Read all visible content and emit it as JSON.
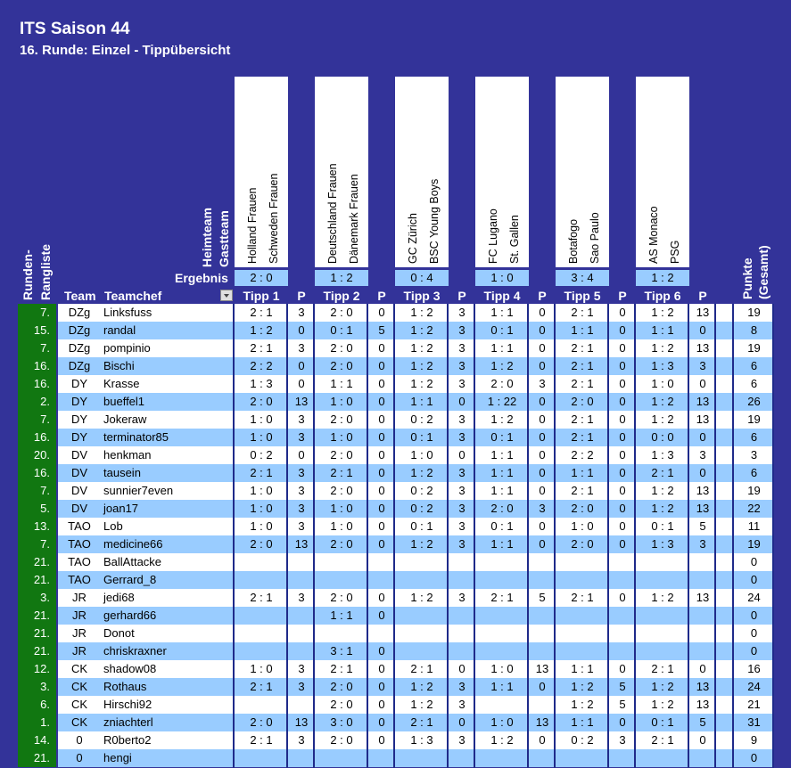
{
  "header": {
    "title": "ITS Saison 44",
    "subtitle": "16. Runde: Einzel - Tippübersicht"
  },
  "labels": {
    "heimteam": "Heimteam",
    "gastteam": "Gastteam",
    "ergebnis": "Ergebnis",
    "rundenrangliste_1": "Runden-",
    "rundenrangliste_2": "Rangliste",
    "team": "Team",
    "teamchef": "Teamchef",
    "punkte_1": "Punkte",
    "punkte_2": "(Gesamt)",
    "p": "P"
  },
  "matches": [
    {
      "tipp_label": "Tipp 1",
      "home": "Holland Frauen",
      "away": "Schweden Frauen",
      "result": "2 : 0"
    },
    {
      "tipp_label": "Tipp 2",
      "home": "Deutschland Frauen",
      "away": "Dänemark Frauen",
      "result": "1 : 2"
    },
    {
      "tipp_label": "Tipp 3",
      "home": "GC Zürich",
      "away": "BSC Young Boys",
      "result": "0 : 4"
    },
    {
      "tipp_label": "Tipp 4",
      "home": "FC Lugano",
      "away": "St. Gallen",
      "result": "1 : 0"
    },
    {
      "tipp_label": "Tipp 5",
      "home": "Botafogo",
      "away": "Sao Paulo",
      "result": "3 : 4"
    },
    {
      "tipp_label": "Tipp 6",
      "home": "AS Monaco",
      "away": "PSG",
      "result": "1 : 2"
    }
  ],
  "rows": [
    {
      "rank": "7.",
      "team": "DZg",
      "chef": "Linksfuss",
      "tips": [
        "2 : 1",
        "2 : 0",
        "1 : 2",
        "1 : 1",
        "2 : 1",
        "1 : 2"
      ],
      "pts": [
        "3",
        "0",
        "3",
        "0",
        "0",
        "13"
      ],
      "total": "19"
    },
    {
      "rank": "15.",
      "team": "DZg",
      "chef": "randal",
      "tips": [
        "1 : 2",
        "0 : 1",
        "1 : 2",
        "0 : 1",
        "1 : 1",
        "1 : 1"
      ],
      "pts": [
        "0",
        "5",
        "3",
        "0",
        "0",
        "0"
      ],
      "total": "8"
    },
    {
      "rank": "7.",
      "team": "DZg",
      "chef": "pompinio",
      "tips": [
        "2 : 1",
        "2 : 0",
        "1 : 2",
        "1 : 1",
        "2 : 1",
        "1 : 2"
      ],
      "pts": [
        "3",
        "0",
        "3",
        "0",
        "0",
        "13"
      ],
      "total": "19"
    },
    {
      "rank": "16.",
      "team": "DZg",
      "chef": "Bischi",
      "tips": [
        "2 : 2",
        "2 : 0",
        "1 : 2",
        "1 : 2",
        "2 : 1",
        "1 : 3"
      ],
      "pts": [
        "0",
        "0",
        "3",
        "0",
        "0",
        "3"
      ],
      "total": "6"
    },
    {
      "rank": "16.",
      "team": "DY",
      "chef": "Krasse",
      "tips": [
        "1 : 3",
        "1 : 1",
        "1 : 2",
        "2 : 0",
        "2 : 1",
        "1 : 0"
      ],
      "pts": [
        "0",
        "0",
        "3",
        "3",
        "0",
        "0"
      ],
      "total": "6"
    },
    {
      "rank": "2.",
      "team": "DY",
      "chef": "bueffel1",
      "tips": [
        "2 : 0",
        "1 : 0",
        "1 : 1",
        "1 : 22",
        "2 : 0",
        "1 : 2"
      ],
      "pts": [
        "13",
        "0",
        "0",
        "0",
        "0",
        "13"
      ],
      "total": "26"
    },
    {
      "rank": "7.",
      "team": "DY",
      "chef": "Jokeraw",
      "tips": [
        "1 : 0",
        "2 : 0",
        "0 : 2",
        "1 : 2",
        "2 : 1",
        "1 : 2"
      ],
      "pts": [
        "3",
        "0",
        "3",
        "0",
        "0",
        "13"
      ],
      "total": "19"
    },
    {
      "rank": "16.",
      "team": "DY",
      "chef": "terminator85",
      "tips": [
        "1 : 0",
        "1 : 0",
        "0 : 1",
        "0 : 1",
        "2 : 1",
        "0 : 0"
      ],
      "pts": [
        "3",
        "0",
        "3",
        "0",
        "0",
        "0"
      ],
      "total": "6"
    },
    {
      "rank": "20.",
      "team": "DV",
      "chef": "henkman",
      "tips": [
        "0 : 2",
        "2 : 0",
        "1 : 0",
        "1 : 1",
        "2 : 2",
        "1 : 3"
      ],
      "pts": [
        "0",
        "0",
        "0",
        "0",
        "0",
        "3"
      ],
      "total": "3"
    },
    {
      "rank": "16.",
      "team": "DV",
      "chef": "tausein",
      "tips": [
        "2 : 1",
        "2 : 1",
        "1 : 2",
        "1 : 1",
        "1 : 1",
        "2 : 1"
      ],
      "pts": [
        "3",
        "0",
        "3",
        "0",
        "0",
        "0"
      ],
      "total": "6"
    },
    {
      "rank": "7.",
      "team": "DV",
      "chef": "sunnier7even",
      "tips": [
        "1 : 0",
        "2 : 0",
        "0 : 2",
        "1 : 1",
        "2 : 1",
        "1 : 2"
      ],
      "pts": [
        "3",
        "0",
        "3",
        "0",
        "0",
        "13"
      ],
      "total": "19"
    },
    {
      "rank": "5.",
      "team": "DV",
      "chef": "joan17",
      "tips": [
        "1 : 0",
        "1 : 0",
        "0 : 2",
        "2 : 0",
        "2 : 0",
        "1 : 2"
      ],
      "pts": [
        "3",
        "0",
        "3",
        "3",
        "0",
        "13"
      ],
      "total": "22"
    },
    {
      "rank": "13.",
      "team": "TAO",
      "chef": "Lob",
      "tips": [
        "1 : 0",
        "1 : 0",
        "0 : 1",
        "0 : 1",
        "1 : 0",
        "0 : 1"
      ],
      "pts": [
        "3",
        "0",
        "3",
        "0",
        "0",
        "5"
      ],
      "total": "11"
    },
    {
      "rank": "7.",
      "team": "TAO",
      "chef": "medicine66",
      "tips": [
        "2 : 0",
        "2 : 0",
        "1 : 2",
        "1 : 1",
        "2 : 0",
        "1 : 3"
      ],
      "pts": [
        "13",
        "0",
        "3",
        "0",
        "0",
        "3"
      ],
      "total": "19"
    },
    {
      "rank": "21.",
      "team": "TAO",
      "chef": "BallAttacke",
      "tips": [
        "",
        "",
        "",
        "",
        "",
        ""
      ],
      "pts": [
        "",
        "",
        "",
        "",
        "",
        ""
      ],
      "total": "0"
    },
    {
      "rank": "21.",
      "team": "TAO",
      "chef": "Gerrard_8",
      "tips": [
        "",
        "",
        "",
        "",
        "",
        ""
      ],
      "pts": [
        "",
        "",
        "",
        "",
        "",
        ""
      ],
      "total": "0"
    },
    {
      "rank": "3.",
      "team": "JR",
      "chef": "jedi68",
      "tips": [
        "2 : 1",
        "2 : 0",
        "1 : 2",
        "2 : 1",
        "2 : 1",
        "1 : 2"
      ],
      "pts": [
        "3",
        "0",
        "3",
        "5",
        "0",
        "13"
      ],
      "total": "24"
    },
    {
      "rank": "21.",
      "team": "JR",
      "chef": "gerhard66",
      "tips": [
        "",
        "1 : 1",
        "",
        "",
        "",
        ""
      ],
      "pts": [
        "",
        "0",
        "",
        "",
        "",
        ""
      ],
      "total": "0"
    },
    {
      "rank": "21.",
      "team": "JR",
      "chef": "Donot",
      "tips": [
        "",
        "",
        "",
        "",
        "",
        ""
      ],
      "pts": [
        "",
        "",
        "",
        "",
        "",
        ""
      ],
      "total": "0"
    },
    {
      "rank": "21.",
      "team": "JR",
      "chef": "chriskraxner",
      "tips": [
        "",
        "3 : 1",
        "",
        "",
        "",
        ""
      ],
      "pts": [
        "",
        "0",
        "",
        "",
        "",
        ""
      ],
      "total": "0"
    },
    {
      "rank": "12.",
      "team": "CK",
      "chef": "shadow08",
      "tips": [
        "1 : 0",
        "2 : 1",
        "2 : 1",
        "1 : 0",
        "1 : 1",
        "2 : 1"
      ],
      "pts": [
        "3",
        "0",
        "0",
        "13",
        "0",
        "0"
      ],
      "total": "16"
    },
    {
      "rank": "3.",
      "team": "CK",
      "chef": "Rothaus",
      "tips": [
        "2 : 1",
        "2 : 0",
        "1 : 2",
        "1 : 1",
        "1 : 2",
        "1 : 2"
      ],
      "pts": [
        "3",
        "0",
        "3",
        "0",
        "5",
        "13"
      ],
      "total": "24"
    },
    {
      "rank": "6.",
      "team": "CK",
      "chef": "Hirschi92",
      "tips": [
        "",
        "2 : 0",
        "1 : 2",
        "",
        "1 : 2",
        "1 : 2"
      ],
      "pts": [
        "",
        "0",
        "3",
        "",
        "5",
        "13"
      ],
      "total": "21"
    },
    {
      "rank": "1.",
      "team": "CK",
      "chef": "zniachterl",
      "tips": [
        "2 : 0",
        "3 : 0",
        "2 : 1",
        "1 : 0",
        "1 : 1",
        "0 : 1"
      ],
      "pts": [
        "13",
        "0",
        "0",
        "13",
        "0",
        "5"
      ],
      "total": "31"
    },
    {
      "rank": "14.",
      "team": "0",
      "chef": "R0berto2",
      "tips": [
        "2 : 1",
        "2 : 0",
        "1 : 3",
        "1 : 2",
        "0 : 2",
        "2 : 1"
      ],
      "pts": [
        "3",
        "0",
        "3",
        "0",
        "3",
        "0"
      ],
      "total": "9"
    },
    {
      "rank": "21.",
      "team": "0",
      "chef": "hengi",
      "tips": [
        "",
        "",
        "",
        "",
        "",
        ""
      ],
      "pts": [
        "",
        "",
        "",
        "",
        "",
        ""
      ],
      "total": "0"
    }
  ]
}
